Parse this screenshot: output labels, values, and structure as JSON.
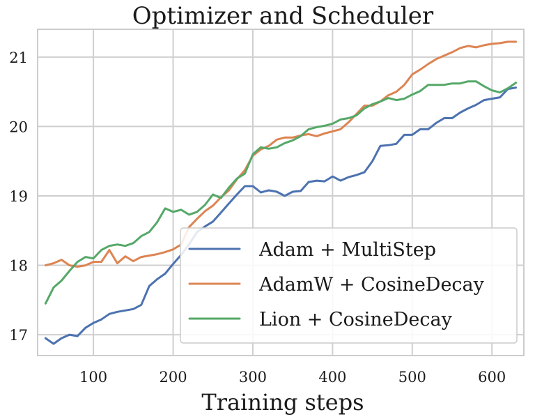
{
  "chart_data": {
    "type": "line",
    "title": "Optimizer and Scheduler",
    "xlabel": "Training steps",
    "ylabel": "",
    "xlim": [
      30,
      640
    ],
    "ylim": [
      16.7,
      21.4
    ],
    "xticks": [
      100,
      200,
      300,
      400,
      500,
      600
    ],
    "yticks": [
      17,
      18,
      19,
      20,
      21
    ],
    "grid": true,
    "legend": "bottom-right",
    "x": [
      40,
      50,
      60,
      70,
      80,
      90,
      100,
      110,
      120,
      130,
      140,
      150,
      160,
      170,
      180,
      190,
      200,
      210,
      220,
      230,
      240,
      250,
      260,
      270,
      280,
      290,
      300,
      310,
      320,
      330,
      340,
      350,
      360,
      370,
      380,
      390,
      400,
      410,
      420,
      430,
      440,
      450,
      460,
      470,
      480,
      490,
      500,
      510,
      520,
      530,
      540,
      550,
      560,
      570,
      580,
      590,
      600,
      610,
      620,
      630
    ],
    "series": [
      {
        "name": "Adam + MultiStep",
        "color": "#4c72b0",
        "values": [
          16.95,
          16.87,
          16.95,
          17.0,
          16.98,
          17.1,
          17.17,
          17.22,
          17.3,
          17.33,
          17.35,
          17.37,
          17.43,
          17.7,
          17.8,
          17.88,
          18.02,
          18.15,
          18.3,
          18.48,
          18.56,
          18.63,
          18.76,
          18.89,
          19.02,
          19.14,
          19.14,
          19.05,
          19.08,
          19.06,
          19.0,
          19.06,
          19.07,
          19.2,
          19.22,
          19.21,
          19.28,
          19.22,
          19.27,
          19.3,
          19.34,
          19.5,
          19.72,
          19.73,
          19.75,
          19.88,
          19.88,
          19.96,
          19.96,
          20.05,
          20.12,
          20.12,
          20.2,
          20.26,
          20.31,
          20.38,
          20.4,
          20.42,
          20.54,
          20.56
        ]
      },
      {
        "name": "AdamW + CosineDecay",
        "color": "#dd8452",
        "values": [
          18.0,
          18.03,
          18.08,
          18.0,
          17.98,
          18.0,
          18.05,
          18.05,
          18.22,
          18.03,
          18.13,
          18.06,
          18.12,
          18.14,
          18.16,
          18.19,
          18.23,
          18.3,
          18.55,
          18.67,
          18.78,
          18.86,
          18.98,
          19.08,
          19.24,
          19.37,
          19.58,
          19.67,
          19.72,
          19.81,
          19.84,
          19.84,
          19.87,
          19.89,
          19.86,
          19.9,
          19.93,
          19.96,
          20.06,
          20.18,
          20.3,
          20.3,
          20.36,
          20.45,
          20.5,
          20.6,
          20.75,
          20.82,
          20.9,
          20.97,
          21.02,
          21.07,
          21.13,
          21.16,
          21.14,
          21.17,
          21.19,
          21.2,
          21.22,
          21.22
        ]
      },
      {
        "name": "Lion + CosineDecay",
        "color": "#55a868",
        "values": [
          17.45,
          17.68,
          17.78,
          17.92,
          18.05,
          18.12,
          18.1,
          18.22,
          18.28,
          18.3,
          18.28,
          18.32,
          18.42,
          18.48,
          18.62,
          18.82,
          18.77,
          18.8,
          18.73,
          18.77,
          18.87,
          19.02,
          18.97,
          19.12,
          19.25,
          19.32,
          19.6,
          19.7,
          19.68,
          19.7,
          19.76,
          19.8,
          19.86,
          19.96,
          19.99,
          20.01,
          20.04,
          20.1,
          20.12,
          20.16,
          20.26,
          20.32,
          20.36,
          20.41,
          20.38,
          20.4,
          20.46,
          20.51,
          20.6,
          20.6,
          20.6,
          20.62,
          20.62,
          20.65,
          20.65,
          20.58,
          20.52,
          20.49,
          20.55,
          20.63
        ]
      }
    ]
  }
}
